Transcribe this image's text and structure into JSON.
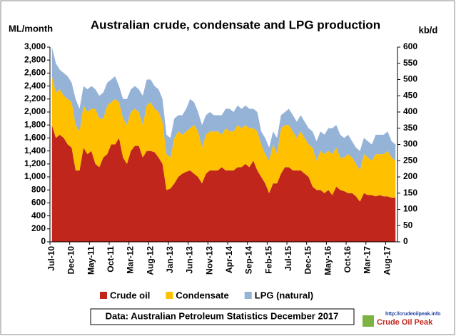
{
  "chart_data": {
    "type": "stacked_area",
    "title": "Australian crude, condensate and LPG production",
    "y_label": "ML/month",
    "y2_label": "kb/d",
    "source": "Data: Australian Petroleum Statistics December 2017",
    "logo_url": "http://crudeoilpeak.info",
    "logo_text": "Crude Oil Peak",
    "categories": [
      "Jul-10",
      null,
      null,
      null,
      null,
      "Dec-10",
      null,
      null,
      null,
      null,
      "May-11",
      null,
      null,
      null,
      null,
      "Oct-11",
      null,
      null,
      null,
      null,
      "Mar-12",
      null,
      null,
      null,
      null,
      "Aug-12",
      null,
      null,
      null,
      null,
      "Jan-13",
      null,
      null,
      null,
      null,
      "Jun-13",
      null,
      null,
      null,
      null,
      "Nov-13",
      null,
      null,
      null,
      null,
      "Apr-14",
      null,
      null,
      null,
      null,
      "Sep-14",
      null,
      null,
      null,
      null,
      "Feb-15",
      null,
      null,
      null,
      null,
      "Jul-15",
      null,
      null,
      null,
      null,
      "Dec-15",
      null,
      null,
      null,
      null,
      "May-16",
      null,
      null,
      null,
      null,
      "Oct-16",
      null,
      null,
      null,
      null,
      "Mar-17",
      null,
      null,
      null,
      null,
      "Aug-17",
      null,
      null
    ],
    "series": [
      {
        "name": "Crude oil",
        "color": "#c0261c",
        "values": [
          1800,
          1600,
          1650,
          1600,
          1500,
          1450,
          1100,
          1100,
          1450,
          1350,
          1400,
          1200,
          1150,
          1300,
          1350,
          1500,
          1500,
          1600,
          1300,
          1200,
          1400,
          1480,
          1480,
          1300,
          1400,
          1400,
          1380,
          1300,
          1200,
          800,
          820,
          900,
          1000,
          1050,
          1080,
          1100,
          1050,
          1000,
          900,
          1050,
          1100,
          1100,
          1100,
          1150,
          1100,
          1100,
          1100,
          1150,
          1150,
          1200,
          1150,
          1250,
          1100,
          1000,
          900,
          750,
          900,
          900,
          1050,
          1150,
          1150,
          1100,
          1100,
          1100,
          1050,
          1000,
          850,
          800,
          800,
          750,
          800,
          720,
          850,
          800,
          780,
          750,
          750,
          700,
          620,
          750,
          720,
          720,
          700,
          720,
          700,
          700,
          680,
          680
        ]
      },
      {
        "name": "Condensate",
        "color": "#ffc000",
        "values": [
          750,
          700,
          700,
          650,
          700,
          700,
          700,
          600,
          650,
          650,
          650,
          850,
          750,
          600,
          750,
          650,
          700,
          550,
          600,
          600,
          600,
          570,
          520,
          500,
          700,
          750,
          670,
          700,
          650,
          550,
          480,
          700,
          700,
          600,
          620,
          650,
          750,
          700,
          550,
          600,
          600,
          600,
          600,
          500,
          650,
          600,
          600,
          650,
          600,
          600,
          600,
          500,
          600,
          500,
          450,
          500,
          600,
          450,
          700,
          650,
          650,
          600,
          500,
          600,
          550,
          500,
          600,
          450,
          600,
          600,
          600,
          630,
          600,
          500,
          520,
          600,
          550,
          500,
          480,
          600,
          580,
          530,
          650,
          630,
          650,
          700,
          620,
          570
        ]
      },
      {
        "name": "LPG (natural)",
        "color": "#95b3d7",
        "values": [
          450,
          450,
          300,
          350,
          350,
          300,
          400,
          350,
          300,
          350,
          350,
          300,
          350,
          400,
          350,
          350,
          350,
          250,
          300,
          400,
          350,
          350,
          350,
          450,
          400,
          350,
          350,
          350,
          350,
          300,
          300,
          300,
          250,
          300,
          350,
          450,
          350,
          300,
          350,
          300,
          300,
          250,
          250,
          300,
          300,
          350,
          300,
          300,
          300,
          300,
          300,
          300,
          300,
          200,
          250,
          200,
          200,
          250,
          200,
          200,
          250,
          250,
          250,
          250,
          250,
          250,
          250,
          300,
          300,
          300,
          350,
          400,
          350,
          350,
          300,
          300,
          250,
          250,
          300,
          250,
          250,
          250,
          300,
          300,
          300,
          300,
          250,
          250
        ]
      }
    ],
    "ylim": [
      0,
      3000
    ],
    "yticks": [
      0,
      200,
      400,
      600,
      800,
      {
        "value": 1000,
        "label": "1,000"
      },
      {
        "value": 1200,
        "label": "1,200"
      },
      {
        "value": 1400,
        "label": "1,400"
      },
      {
        "value": 1600,
        "label": "1,600"
      },
      {
        "value": 1800,
        "label": "1,800"
      },
      {
        "value": 2000,
        "label": "2,000"
      },
      {
        "value": 2200,
        "label": "2,200"
      },
      {
        "value": 2400,
        "label": "2,400"
      },
      {
        "value": 2600,
        "label": "2,600"
      },
      {
        "value": 2800,
        "label": "2,800"
      },
      {
        "value": 3000,
        "label": "3,000"
      }
    ],
    "y2lim": [
      0,
      600
    ],
    "y2ticks": [
      0,
      50,
      100,
      150,
      200,
      250,
      300,
      350,
      400,
      450,
      500,
      550,
      600
    ],
    "grid": false
  }
}
